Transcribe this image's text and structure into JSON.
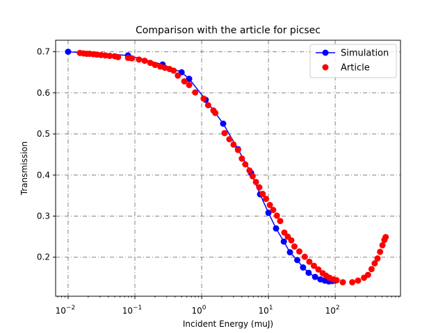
{
  "chart_data": {
    "type": "line",
    "title": "Comparison with the article for picsec",
    "xlabel": "Incident Energy (muJ)",
    "ylabel": "Transmission",
    "xscale": "log",
    "xlim": [
      0.0065,
      950
    ],
    "ylim": [
      0.105,
      0.728
    ],
    "grid": true,
    "legend_position": "top-right",
    "x_ticks": [
      {
        "value": 0.01,
        "base": "10",
        "exp": "−2"
      },
      {
        "value": 0.1,
        "base": "10",
        "exp": "−1"
      },
      {
        "value": 1,
        "base": "10",
        "exp": "0"
      },
      {
        "value": 10,
        "base": "10",
        "exp": "1"
      },
      {
        "value": 100,
        "base": "10",
        "exp": "2"
      }
    ],
    "y_ticks": [
      {
        "value": 0.2,
        "label": "0.2"
      },
      {
        "value": 0.3,
        "label": "0.3"
      },
      {
        "value": 0.4,
        "label": "0.4"
      },
      {
        "value": 0.5,
        "label": "0.5"
      },
      {
        "value": 0.6,
        "label": "0.6"
      },
      {
        "value": 0.7,
        "label": "0.7"
      }
    ],
    "series": [
      {
        "name": "Simulation",
        "color": "#0000ff",
        "style": "line-marker",
        "points": [
          [
            0.01,
            0.7
          ],
          [
            0.0788,
            0.691
          ],
          [
            0.26,
            0.669
          ],
          [
            0.5,
            0.65
          ],
          [
            0.65,
            0.634
          ],
          [
            1.15,
            0.583
          ],
          [
            2.1,
            0.525
          ],
          [
            3.5,
            0.463
          ],
          [
            5.5,
            0.405
          ],
          [
            7.5,
            0.353
          ],
          [
            10,
            0.308
          ],
          [
            13,
            0.27
          ],
          [
            17,
            0.238
          ],
          [
            21,
            0.212
          ],
          [
            27,
            0.193
          ],
          [
            33,
            0.175
          ],
          [
            40,
            0.162
          ],
          [
            50,
            0.152
          ],
          [
            60,
            0.146
          ],
          [
            70,
            0.143
          ],
          [
            80,
            0.141
          ],
          [
            90,
            0.142
          ],
          [
            100,
            0.143
          ]
        ]
      },
      {
        "name": "Article",
        "color": "#ff0000",
        "style": "marker",
        "points": [
          [
            0.015,
            0.697
          ],
          [
            0.017,
            0.696
          ],
          [
            0.019,
            0.695
          ],
          [
            0.021,
            0.695
          ],
          [
            0.024,
            0.694
          ],
          [
            0.027,
            0.693
          ],
          [
            0.031,
            0.692
          ],
          [
            0.036,
            0.691
          ],
          [
            0.042,
            0.69
          ],
          [
            0.05,
            0.689
          ],
          [
            0.056,
            0.687
          ],
          [
            0.079,
            0.685
          ],
          [
            0.09,
            0.684
          ],
          [
            0.115,
            0.681
          ],
          [
            0.14,
            0.678
          ],
          [
            0.17,
            0.673
          ],
          [
            0.2,
            0.668
          ],
          [
            0.24,
            0.664
          ],
          [
            0.28,
            0.661
          ],
          [
            0.33,
            0.658
          ],
          [
            0.38,
            0.654
          ],
          [
            0.44,
            0.642
          ],
          [
            0.55,
            0.628
          ],
          [
            0.65,
            0.619
          ],
          [
            0.8,
            0.601
          ],
          [
            1.07,
            0.586
          ],
          [
            1.25,
            0.57
          ],
          [
            1.5,
            0.557
          ],
          [
            1.6,
            0.551
          ],
          [
            2.2,
            0.502
          ],
          [
            2.6,
            0.487
          ],
          [
            3.0,
            0.474
          ],
          [
            3.5,
            0.461
          ],
          [
            4.0,
            0.44
          ],
          [
            4.5,
            0.426
          ],
          [
            5.2,
            0.411
          ],
          [
            5.8,
            0.397
          ],
          [
            6.5,
            0.383
          ],
          [
            7.3,
            0.37
          ],
          [
            8.2,
            0.354
          ],
          [
            9.2,
            0.342
          ],
          [
            10.5,
            0.327
          ],
          [
            11.8,
            0.315
          ],
          [
            13.4,
            0.301
          ],
          [
            15.0,
            0.288
          ],
          [
            17.3,
            0.26
          ],
          [
            19.5,
            0.25
          ],
          [
            22.0,
            0.241
          ],
          [
            24.5,
            0.226
          ],
          [
            29.0,
            0.214
          ],
          [
            35.0,
            0.201
          ],
          [
            41.0,
            0.189
          ],
          [
            48.0,
            0.179
          ],
          [
            56.0,
            0.17
          ],
          [
            65.0,
            0.161
          ],
          [
            73.0,
            0.155
          ],
          [
            82.0,
            0.15
          ],
          [
            94.0,
            0.146
          ],
          [
            105.0,
            0.144
          ],
          [
            130.0,
            0.139
          ],
          [
            180.0,
            0.139
          ],
          [
            220.0,
            0.143
          ],
          [
            270.0,
            0.15
          ],
          [
            310.0,
            0.157
          ],
          [
            350.0,
            0.171
          ],
          [
            390.0,
            0.185
          ],
          [
            430.0,
            0.197
          ],
          [
            470.0,
            0.213
          ],
          [
            510.0,
            0.229
          ],
          [
            545.0,
            0.242
          ],
          [
            570.0,
            0.249
          ]
        ]
      }
    ]
  }
}
